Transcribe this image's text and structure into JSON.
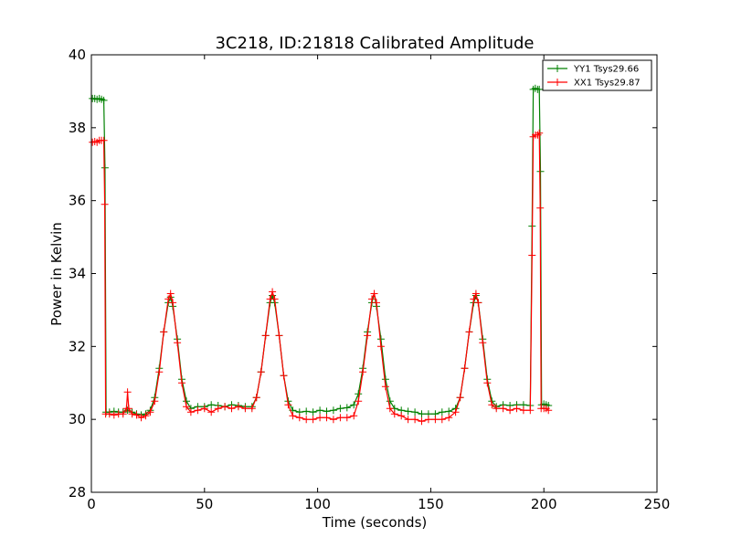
{
  "chart_data": {
    "type": "line",
    "title": "3C218, ID:21818 Calibrated Amplitude",
    "xlabel": "Time (seconds)",
    "ylabel": "Power in Kelvin",
    "xlim": [
      0,
      250
    ],
    "ylim": [
      28,
      40
    ],
    "xticks": [
      0,
      50,
      100,
      150,
      200,
      250
    ],
    "yticks": [
      28,
      30,
      32,
      34,
      36,
      38,
      40
    ],
    "xtick_labels": [
      "0",
      "50",
      "100",
      "150",
      "200",
      "250"
    ],
    "ytick_labels": [
      "28",
      "30",
      "32",
      "34",
      "36",
      "38",
      "40"
    ],
    "grid": false,
    "legend_position": "top-right",
    "marker": "+",
    "series": [
      {
        "name": "YY1 Tsys29.66",
        "color": "#008000",
        "points": [
          [
            0.5,
            38.8
          ],
          [
            1.5,
            38.8
          ],
          [
            2.5,
            38.78
          ],
          [
            3.5,
            38.8
          ],
          [
            4.5,
            38.78
          ],
          [
            5.5,
            38.75
          ],
          [
            6.0,
            36.9
          ],
          [
            6.5,
            30.2
          ],
          [
            8,
            30.2
          ],
          [
            10,
            30.22
          ],
          [
            12,
            30.2
          ],
          [
            14,
            30.2
          ],
          [
            16,
            30.25
          ],
          [
            18,
            30.2
          ],
          [
            20,
            30.15
          ],
          [
            22,
            30.12
          ],
          [
            24,
            30.15
          ],
          [
            26,
            30.25
          ],
          [
            28,
            30.6
          ],
          [
            30,
            31.4
          ],
          [
            32,
            32.4
          ],
          [
            34,
            33.2
          ],
          [
            35,
            33.35
          ],
          [
            36,
            33.1
          ],
          [
            38,
            32.2
          ],
          [
            40,
            31.1
          ],
          [
            42,
            30.5
          ],
          [
            44,
            30.3
          ],
          [
            47,
            30.35
          ],
          [
            50,
            30.35
          ],
          [
            53,
            30.4
          ],
          [
            56,
            30.38
          ],
          [
            59,
            30.35
          ],
          [
            62,
            30.4
          ],
          [
            65,
            30.38
          ],
          [
            68,
            30.35
          ],
          [
            71,
            30.35
          ],
          [
            73,
            30.6
          ],
          [
            75,
            31.3
          ],
          [
            77,
            32.3
          ],
          [
            79,
            33.2
          ],
          [
            80,
            33.4
          ],
          [
            81,
            33.2
          ],
          [
            83,
            32.3
          ],
          [
            85,
            31.2
          ],
          [
            87,
            30.5
          ],
          [
            89,
            30.25
          ],
          [
            92,
            30.2
          ],
          [
            95,
            30.22
          ],
          [
            98,
            30.2
          ],
          [
            101,
            30.25
          ],
          [
            104,
            30.22
          ],
          [
            107,
            30.25
          ],
          [
            110,
            30.3
          ],
          [
            113,
            30.32
          ],
          [
            116,
            30.4
          ],
          [
            118,
            30.7
          ],
          [
            120,
            31.4
          ],
          [
            122,
            32.4
          ],
          [
            124,
            33.2
          ],
          [
            125,
            33.45
          ],
          [
            126,
            33.1
          ],
          [
            128,
            32.2
          ],
          [
            130,
            31.1
          ],
          [
            132,
            30.5
          ],
          [
            134,
            30.3
          ],
          [
            137,
            30.25
          ],
          [
            140,
            30.22
          ],
          [
            143,
            30.2
          ],
          [
            146,
            30.15
          ],
          [
            149,
            30.15
          ],
          [
            152,
            30.15
          ],
          [
            155,
            30.2
          ],
          [
            158,
            30.22
          ],
          [
            161,
            30.3
          ],
          [
            163,
            30.6
          ],
          [
            165,
            31.4
          ],
          [
            167,
            32.4
          ],
          [
            169,
            33.2
          ],
          [
            170,
            33.4
          ],
          [
            171,
            33.2
          ],
          [
            173,
            32.2
          ],
          [
            175,
            31.1
          ],
          [
            177,
            30.5
          ],
          [
            179,
            30.35
          ],
          [
            182,
            30.4
          ],
          [
            185,
            30.38
          ],
          [
            188,
            30.4
          ],
          [
            191,
            30.4
          ],
          [
            194,
            30.38
          ],
          [
            194.8,
            35.3
          ],
          [
            195.3,
            39.05
          ],
          [
            196.2,
            39.08
          ],
          [
            197.2,
            39.05
          ],
          [
            198.0,
            39.05
          ],
          [
            198.5,
            36.8
          ],
          [
            199.0,
            30.4
          ],
          [
            200,
            30.42
          ],
          [
            201,
            30.4
          ],
          [
            202,
            30.38
          ]
        ]
      },
      {
        "name": "XX1 Tsys29.87",
        "color": "#ff0000",
        "points": [
          [
            0.5,
            37.6
          ],
          [
            1.5,
            37.62
          ],
          [
            2.5,
            37.6
          ],
          [
            3.5,
            37.65
          ],
          [
            4.5,
            37.65
          ],
          [
            5.5,
            37.65
          ],
          [
            5.9,
            35.9
          ],
          [
            6.3,
            30.15
          ],
          [
            8,
            30.15
          ],
          [
            10,
            30.12
          ],
          [
            12,
            30.15
          ],
          [
            14,
            30.15
          ],
          [
            15.5,
            30.3
          ],
          [
            16.0,
            30.75
          ],
          [
            16.5,
            30.3
          ],
          [
            18,
            30.15
          ],
          [
            20,
            30.12
          ],
          [
            22,
            30.05
          ],
          [
            24,
            30.1
          ],
          [
            26,
            30.2
          ],
          [
            28,
            30.5
          ],
          [
            30,
            31.3
          ],
          [
            32,
            32.4
          ],
          [
            34,
            33.3
          ],
          [
            35,
            33.45
          ],
          [
            36,
            33.2
          ],
          [
            38,
            32.1
          ],
          [
            40,
            31.0
          ],
          [
            42,
            30.35
          ],
          [
            44,
            30.2
          ],
          [
            47,
            30.25
          ],
          [
            50,
            30.3
          ],
          [
            53,
            30.2
          ],
          [
            56,
            30.3
          ],
          [
            59,
            30.35
          ],
          [
            62,
            30.3
          ],
          [
            65,
            30.35
          ],
          [
            68,
            30.3
          ],
          [
            71,
            30.3
          ],
          [
            73,
            30.6
          ],
          [
            75,
            31.3
          ],
          [
            77,
            32.3
          ],
          [
            79,
            33.3
          ],
          [
            80,
            33.5
          ],
          [
            81,
            33.3
          ],
          [
            83,
            32.3
          ],
          [
            85,
            31.2
          ],
          [
            87,
            30.4
          ],
          [
            89,
            30.1
          ],
          [
            92,
            30.05
          ],
          [
            95,
            30.0
          ],
          [
            98,
            30.0
          ],
          [
            101,
            30.05
          ],
          [
            104,
            30.05
          ],
          [
            107,
            30.0
          ],
          [
            110,
            30.05
          ],
          [
            113,
            30.05
          ],
          [
            116,
            30.1
          ],
          [
            118,
            30.5
          ],
          [
            120,
            31.3
          ],
          [
            122,
            32.3
          ],
          [
            124,
            33.3
          ],
          [
            125,
            33.45
          ],
          [
            126,
            33.2
          ],
          [
            128,
            32.0
          ],
          [
            130,
            30.9
          ],
          [
            132,
            30.3
          ],
          [
            134,
            30.15
          ],
          [
            137,
            30.1
          ],
          [
            140,
            30.0
          ],
          [
            143,
            30.0
          ],
          [
            146,
            29.95
          ],
          [
            149,
            30.0
          ],
          [
            152,
            30.0
          ],
          [
            155,
            30.0
          ],
          [
            158,
            30.05
          ],
          [
            161,
            30.2
          ],
          [
            163,
            30.6
          ],
          [
            165,
            31.4
          ],
          [
            167,
            32.4
          ],
          [
            169,
            33.3
          ],
          [
            170,
            33.45
          ],
          [
            171,
            33.2
          ],
          [
            173,
            32.1
          ],
          [
            175,
            31.0
          ],
          [
            177,
            30.4
          ],
          [
            179,
            30.3
          ],
          [
            182,
            30.3
          ],
          [
            185,
            30.25
          ],
          [
            188,
            30.3
          ],
          [
            191,
            30.25
          ],
          [
            194,
            30.25
          ],
          [
            194.8,
            34.5
          ],
          [
            195.3,
            37.75
          ],
          [
            196.3,
            37.8
          ],
          [
            197.3,
            37.8
          ],
          [
            198.0,
            37.85
          ],
          [
            198.4,
            35.8
          ],
          [
            198.8,
            30.3
          ],
          [
            200,
            30.3
          ],
          [
            201,
            30.3
          ],
          [
            202,
            30.25
          ]
        ]
      }
    ]
  }
}
